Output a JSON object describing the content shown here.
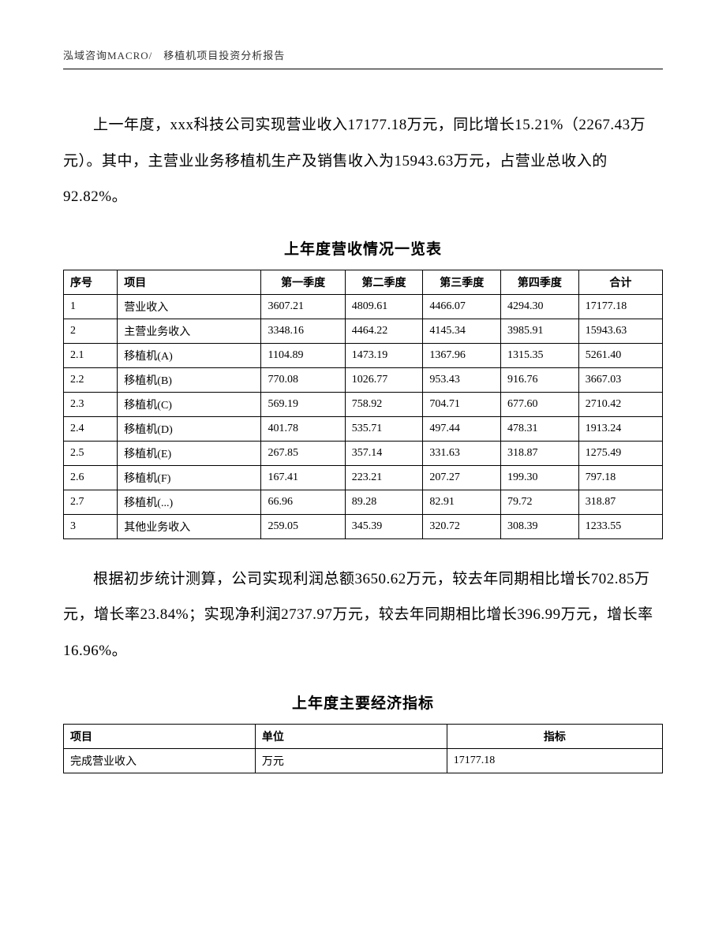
{
  "header": "泓域咨询MACRO/　移植机项目投资分析报告",
  "paragraph1": "上一年度，xxx科技公司实现营业收入17177.18万元，同比增长15.21%（2267.43万元）。其中，主营业业务移植机生产及销售收入为15943.63万元，占营业总收入的92.82%。",
  "table1": {
    "title": "上年度营收情况一览表",
    "columns": [
      "序号",
      "项目",
      "第一季度",
      "第二季度",
      "第三季度",
      "第四季度",
      "合计"
    ],
    "rows": [
      [
        "1",
        "营业收入",
        "3607.21",
        "4809.61",
        "4466.07",
        "4294.30",
        "17177.18"
      ],
      [
        "2",
        "主营业务收入",
        "3348.16",
        "4464.22",
        "4145.34",
        "3985.91",
        "15943.63"
      ],
      [
        "2.1",
        "移植机(A)",
        "1104.89",
        "1473.19",
        "1367.96",
        "1315.35",
        "5261.40"
      ],
      [
        "2.2",
        "移植机(B)",
        "770.08",
        "1026.77",
        "953.43",
        "916.76",
        "3667.03"
      ],
      [
        "2.3",
        "移植机(C)",
        "569.19",
        "758.92",
        "704.71",
        "677.60",
        "2710.42"
      ],
      [
        "2.4",
        "移植机(D)",
        "401.78",
        "535.71",
        "497.44",
        "478.31",
        "1913.24"
      ],
      [
        "2.5",
        "移植机(E)",
        "267.85",
        "357.14",
        "331.63",
        "318.87",
        "1275.49"
      ],
      [
        "2.6",
        "移植机(F)",
        "167.41",
        "223.21",
        "207.27",
        "199.30",
        "797.18"
      ],
      [
        "2.7",
        "移植机(...)",
        "66.96",
        "89.28",
        "82.91",
        "79.72",
        "318.87"
      ],
      [
        "3",
        "其他业务收入",
        "259.05",
        "345.39",
        "320.72",
        "308.39",
        "1233.55"
      ]
    ]
  },
  "paragraph2": "根据初步统计测算，公司实现利润总额3650.62万元，较去年同期相比增长702.85万元，增长率23.84%；实现净利润2737.97万元，较去年同期相比增长396.99万元，增长率16.96%。",
  "table2": {
    "title": "上年度主要经济指标",
    "columns": [
      "项目",
      "单位",
      "指标"
    ],
    "rows": [
      [
        "完成营业收入",
        "万元",
        "17177.18"
      ]
    ]
  }
}
